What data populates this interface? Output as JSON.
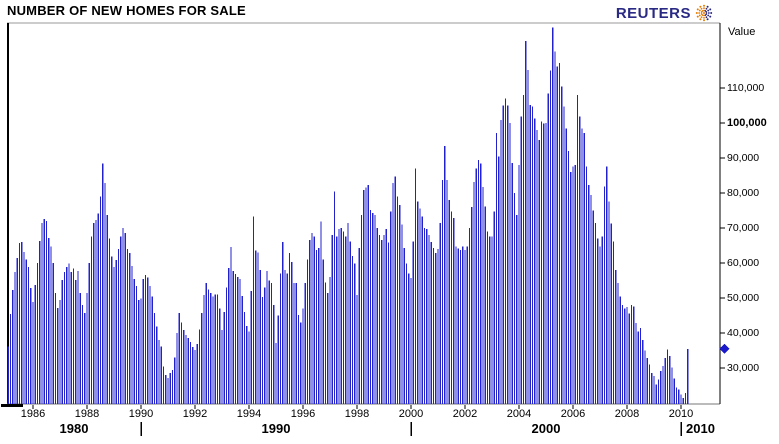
{
  "header": {
    "title": "NUMBER OF NEW HOMES FOR SALE",
    "brand": "REUTERS"
  },
  "colors": {
    "bar": "#2222cc",
    "marker": "#1a1acc",
    "brand_blue": "#2a2a85",
    "globe_orange": "#e87a00",
    "border_gray": "#999999",
    "axis_black": "#000000"
  },
  "chart_data": {
    "type": "bar",
    "title": "NUMBER OF NEW HOMES FOR SALE",
    "xlabel": "",
    "ylabel": "Value",
    "grid": false,
    "legend": "none",
    "ylim": [
      20000,
      129000
    ],
    "y_ticks": [
      {
        "label": "110,000",
        "value": 110000,
        "bold": false
      },
      {
        "label": "100,000",
        "value": 100000,
        "bold": true
      },
      {
        "label": "90,000",
        "value": 90000,
        "bold": false
      },
      {
        "label": "80,000",
        "value": 80000,
        "bold": false
      },
      {
        "label": "70,000",
        "value": 70000,
        "bold": false
      },
      {
        "label": "60,000",
        "value": 60000,
        "bold": false
      },
      {
        "label": "50,000",
        "value": 50000,
        "bold": false
      },
      {
        "label": "40,000",
        "value": 40000,
        "bold": false
      },
      {
        "label": "30,000",
        "value": 30000,
        "bold": false
      }
    ],
    "x_year_ticks": [
      1986,
      1988,
      1990,
      1992,
      1994,
      1996,
      1998,
      2000,
      2002,
      2004,
      2006,
      2008,
      2010
    ],
    "decade_labels": [
      "1980",
      "1990",
      "2000",
      "2010"
    ],
    "decade_boundary_years": [
      1990,
      2000,
      2010
    ],
    "last_value": 35500,
    "last_value_marker": "diamond",
    "series": [
      {
        "name": "Number of new homes for sale",
        "frequency": "monthly",
        "start_year": 1985,
        "start_month": 2,
        "values": [
          36200,
          45400,
          52300,
          57500,
          61500,
          65700,
          66000,
          63200,
          61000,
          58900,
          52900,
          48900,
          53700,
          60000,
          66300,
          71400,
          72600,
          72000,
          67100,
          64700,
          60000,
          51400,
          47100,
          49400,
          55100,
          57500,
          58900,
          59900,
          57500,
          58500,
          55100,
          57700,
          51400,
          48000,
          45700,
          51400,
          60000,
          67600,
          71400,
          72300,
          74200,
          79000,
          88500,
          82800,
          73700,
          67000,
          61800,
          58900,
          60900,
          64000,
          67600,
          70000,
          68600,
          64000,
          62800,
          59200,
          55400,
          53500,
          49400,
          49900,
          55400,
          56600,
          55900,
          53500,
          50400,
          45700,
          41900,
          38000,
          36100,
          30400,
          28000,
          27100,
          28600,
          29500,
          33000,
          40000,
          45700,
          43000,
          40900,
          39500,
          38600,
          37500,
          36000,
          35100,
          36900,
          41000,
          45700,
          50900,
          54300,
          52500,
          51400,
          50500,
          51000,
          51000,
          47000,
          40900,
          46000,
          53000,
          58600,
          64600,
          57700,
          56900,
          56000,
          55400,
          50600,
          46000,
          42000,
          40400,
          52000,
          73300,
          63600,
          63000,
          58000,
          50300,
          53000,
          57700,
          55000,
          54300,
          48000,
          37100,
          45000,
          57000,
          66000,
          58000,
          57000,
          62900,
          60300,
          54300,
          54300,
          45200,
          43000,
          47000,
          54300,
          61000,
          66600,
          68600,
          67600,
          63700,
          64300,
          71900,
          61000,
          54500,
          51400,
          56000,
          68000,
          80400,
          67600,
          69700,
          70000,
          69000,
          67600,
          71400,
          66100,
          62000,
          59900,
          50900,
          64300,
          73700,
          80900,
          81600,
          82300,
          75100,
          74300,
          73700,
          70000,
          68000,
          66600,
          68000,
          69700,
          65900,
          74700,
          82800,
          84700,
          79000,
          76600,
          71000,
          64300,
          59900,
          57000,
          55700,
          66100,
          87000,
          77600,
          75600,
          73300,
          70000,
          69700,
          68000,
          66000,
          64300,
          62900,
          64000,
          71400,
          83700,
          93500,
          83700,
          78000,
          74700,
          72800,
          64700,
          64200,
          63700,
          64700,
          63700,
          64700,
          70000,
          76000,
          83200,
          87000,
          89400,
          88400,
          81700,
          76100,
          69000,
          67600,
          67600,
          74700,
          97100,
          90400,
          100900,
          105000,
          107000,
          105000,
          100000,
          88600,
          80000,
          73700,
          88000,
          101800,
          108000,
          123500,
          115100,
          105100,
          104700,
          101300,
          98000,
          95100,
          100400,
          99900,
          100000,
          108500,
          115000,
          127300,
          120400,
          116100,
          117100,
          110400,
          104700,
          98500,
          92000,
          86000,
          87600,
          88000,
          108000,
          101800,
          98500,
          97100,
          87600,
          82300,
          79400,
          75000,
          71400,
          67000,
          64700,
          67600,
          81800,
          87600,
          77600,
          71300,
          66100,
          58000,
          54300,
          50400,
          48000,
          47000,
          47400,
          45600,
          48000,
          47600,
          42900,
          40400,
          41400,
          38000,
          35000,
          32900,
          31000,
          28600,
          27700,
          25300,
          26700,
          29100,
          30600,
          32900,
          35300,
          33400,
          30100,
          27000,
          24500,
          23900,
          22400,
          21400,
          22900,
          35500
        ]
      }
    ]
  }
}
